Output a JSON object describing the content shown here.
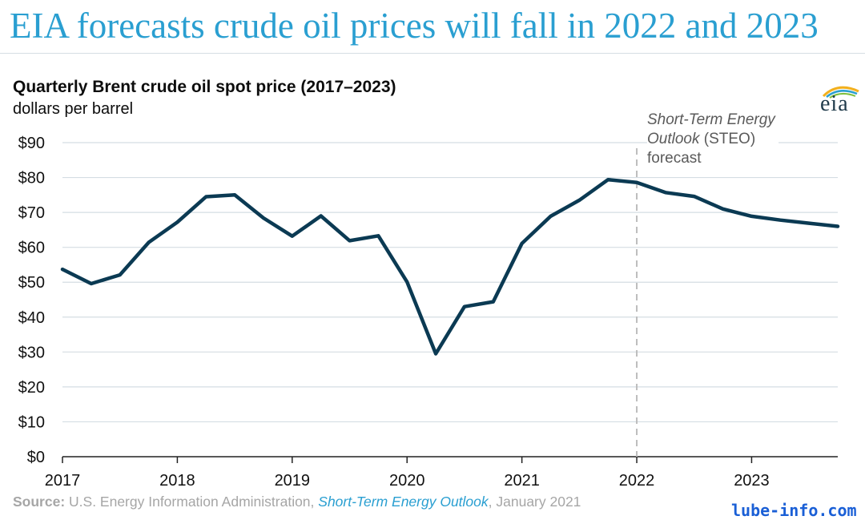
{
  "headline": "EIA forecasts crude oil prices will fall in 2022 and 2023",
  "logo_text": "eia",
  "source": {
    "label": "Source:",
    "agency": " U.S. Energy Information Administration, ",
    "report": "Short-Term Energy Outlook",
    "date": ", January 2021"
  },
  "watermark": "lube-info.com",
  "colors": {
    "headline": "#2a9fd1",
    "line": "#0b3a53",
    "grid": "#d4dde3",
    "forecast_divider": "#bdbdbd",
    "source_link": "#2a9fd1",
    "watermark": "#1a5fd6"
  },
  "chart_data": {
    "type": "line",
    "title": "Quarterly Brent crude oil spot price (2017–2023)",
    "subtitle": "dollars per barrel",
    "ylim": [
      0,
      90
    ],
    "yticks": [
      0,
      10,
      20,
      30,
      40,
      50,
      60,
      70,
      80,
      90
    ],
    "ytick_labels": [
      "$0",
      "$10",
      "$20",
      "$30",
      "$40",
      "$50",
      "$60",
      "$70",
      "$80",
      "$90"
    ],
    "xlim": [
      2017.0,
      2023.75
    ],
    "xticks": [
      2017,
      2018,
      2019,
      2020,
      2021,
      2022,
      2023
    ],
    "xtick_labels": [
      "2017",
      "2018",
      "2019",
      "2020",
      "2021",
      "2022",
      "2023"
    ],
    "grid": true,
    "forecast_start": 2022.0,
    "annotation": {
      "line1_italic": "Short-Term Energy",
      "line2_italic": "Outlook",
      "line2_rest": " (STEO)",
      "line3": "forecast"
    },
    "x": [
      2017.0,
      2017.25,
      2017.5,
      2017.75,
      2018.0,
      2018.25,
      2018.5,
      2018.75,
      2019.0,
      2019.25,
      2019.5,
      2019.75,
      2020.0,
      2020.25,
      2020.5,
      2020.75,
      2021.0,
      2021.25,
      2021.5,
      2021.75,
      2022.0,
      2022.25,
      2022.5,
      2022.75,
      2023.0,
      2023.25,
      2023.5,
      2023.75
    ],
    "values": [
      53.7,
      49.6,
      52.1,
      61.4,
      67.2,
      74.5,
      75.0,
      68.4,
      63.2,
      69.0,
      61.9,
      63.3,
      50.1,
      29.5,
      43.0,
      44.4,
      61.1,
      68.9,
      73.5,
      79.4,
      78.6,
      75.7,
      74.6,
      71.0,
      68.9,
      67.8,
      66.9,
      66.0
    ]
  }
}
